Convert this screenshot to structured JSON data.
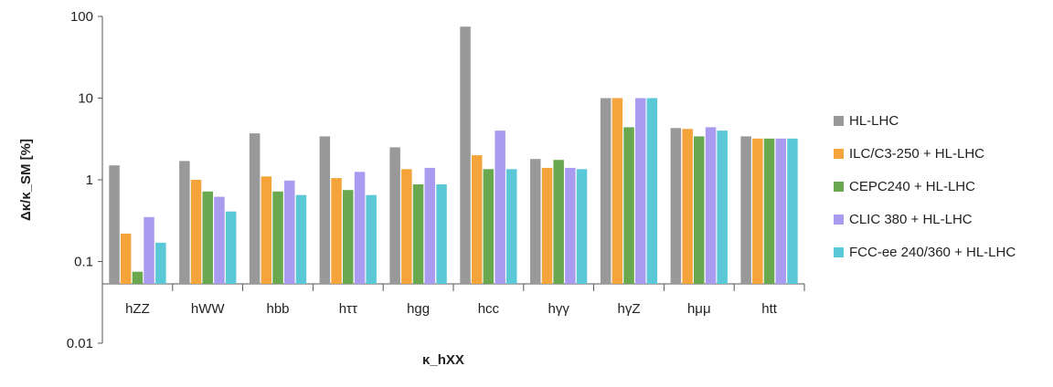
{
  "chart_data": {
    "type": "bar",
    "title": "",
    "xlabel": "κ_hXX",
    "ylabel": "Δκ/κ_SM [%]",
    "yscale": "log",
    "ylim": [
      0.01,
      100
    ],
    "yticks": [
      "0.01",
      "0.1",
      "1",
      "10",
      "100"
    ],
    "grid": false,
    "legend_position": "right",
    "categories": [
      "hZZ",
      "hWW",
      "hbb",
      "hττ",
      "hgg",
      "hcc",
      "hγγ",
      "hγZ",
      "hμμ",
      "htt"
    ],
    "series": [
      {
        "name": "HL-LHC",
        "color": "#999999",
        "values": [
          1.5,
          1.7,
          3.7,
          3.4,
          2.5,
          75,
          1.8,
          10,
          4.3,
          3.4
        ]
      },
      {
        "name": "ILC/C3-250 + HL-LHC",
        "color": "#f4a43a",
        "values": [
          0.22,
          1.0,
          1.1,
          1.05,
          1.35,
          2.0,
          1.4,
          10,
          4.2,
          3.2
        ]
      },
      {
        "name": "CEPC240 + HL-LHC",
        "color": "#6aa84f",
        "values": [
          0.075,
          0.72,
          0.72,
          0.75,
          0.88,
          1.35,
          1.75,
          4.4,
          3.4,
          3.2
        ]
      },
      {
        "name": "CLIC 380 + HL-LHC",
        "color": "#a99cf0",
        "values": [
          0.35,
          0.62,
          0.98,
          1.25,
          1.4,
          4.0,
          1.4,
          10,
          4.4,
          3.2
        ]
      },
      {
        "name": "FCC-ee 240/360 + HL-LHC",
        "color": "#5bc8d8",
        "values": [
          0.17,
          0.41,
          0.65,
          0.65,
          0.88,
          1.35,
          1.35,
          10,
          4.0,
          3.2
        ]
      }
    ]
  }
}
